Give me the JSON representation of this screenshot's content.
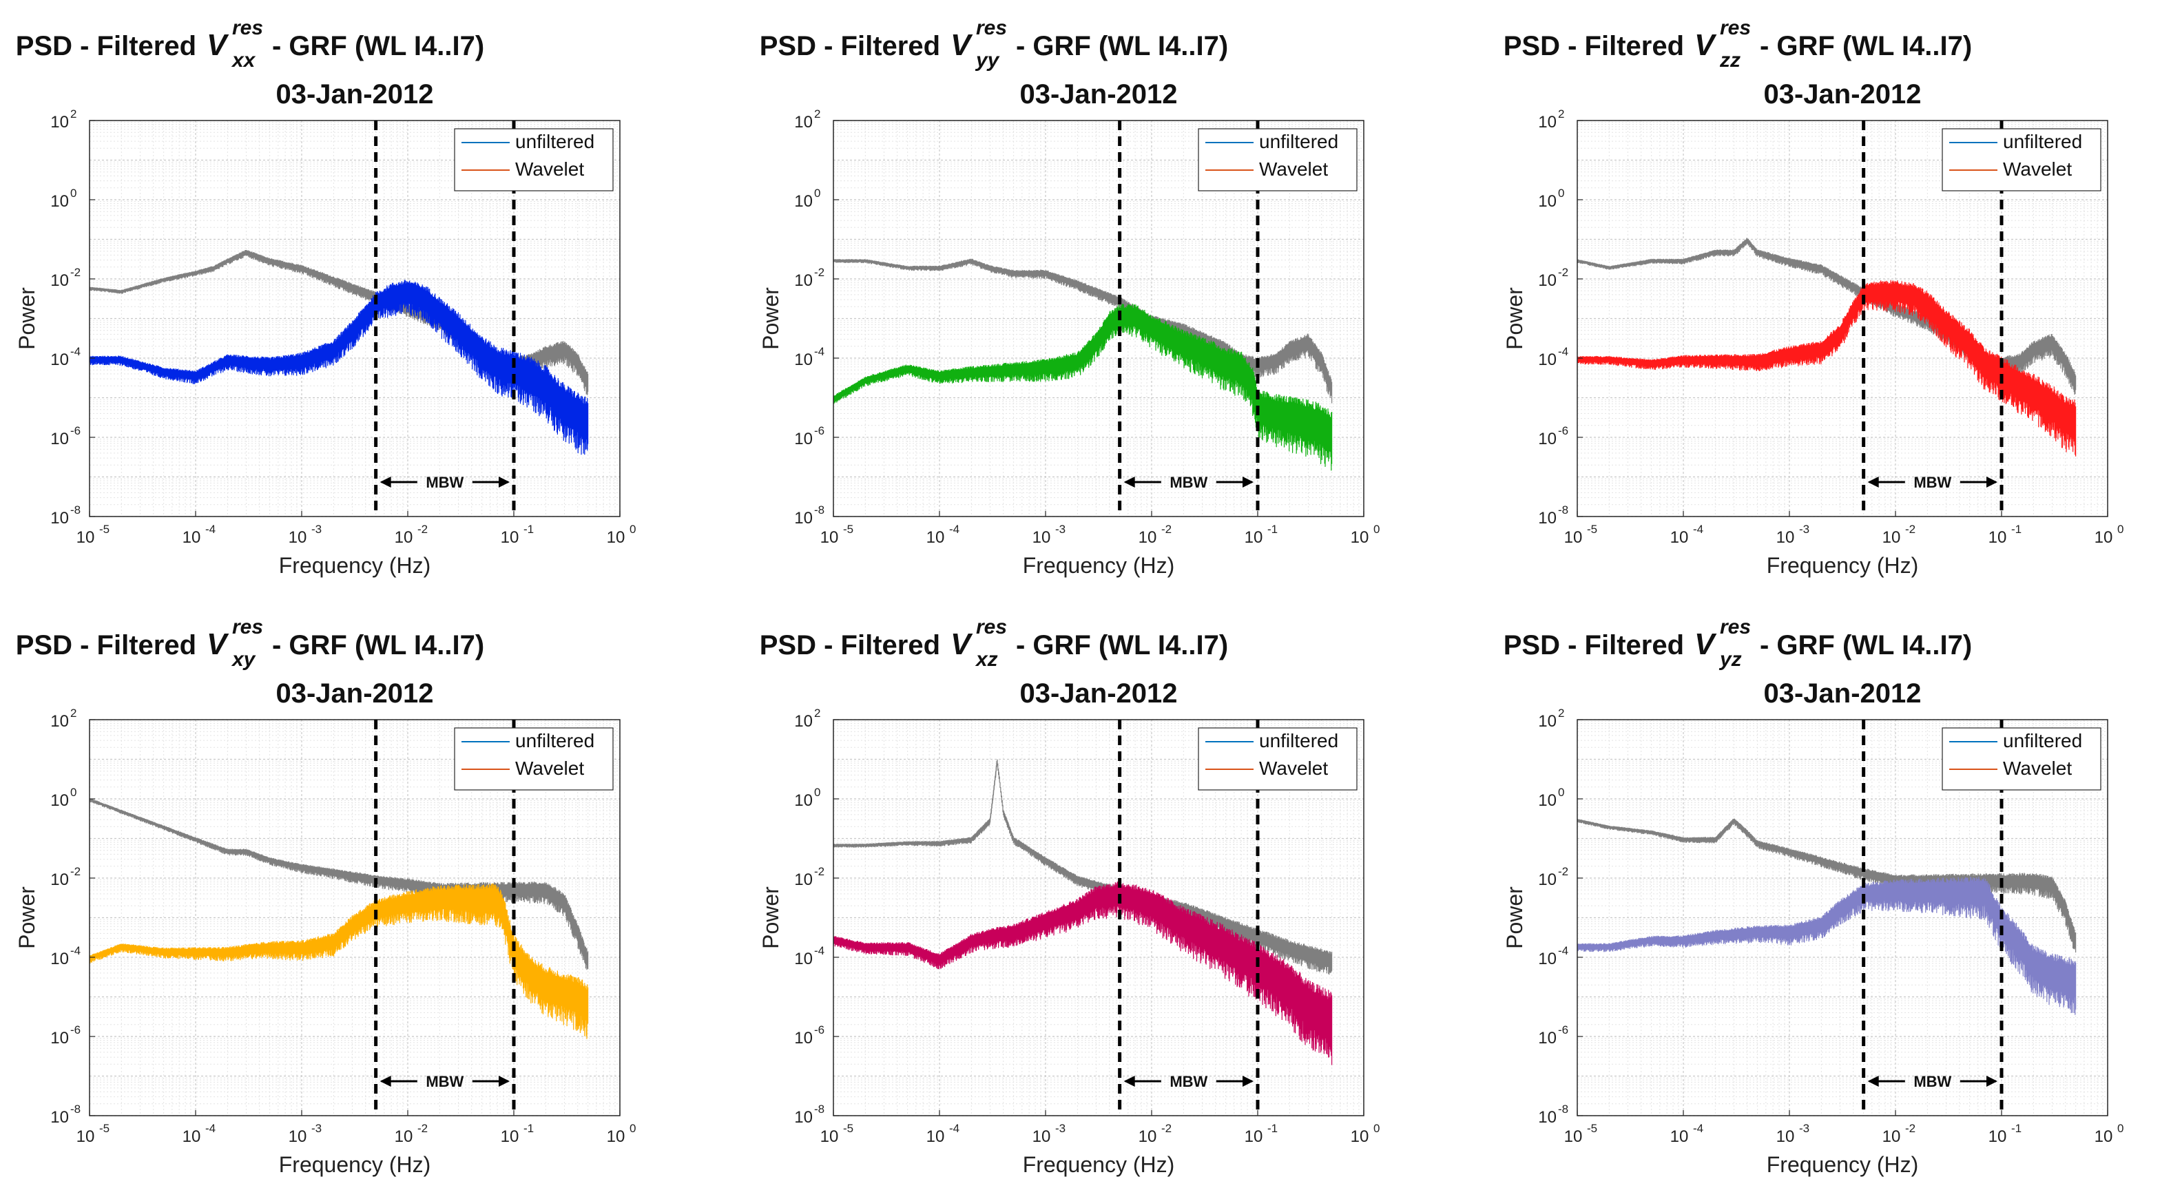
{
  "chart_data": [
    {
      "type": "line",
      "id": "xx",
      "title": {
        "prefix": "PSD - Filtered",
        "symbol": "V",
        "superscript": "res",
        "subscript": "xx",
        "suffix": "- GRF (WL I4..I7)"
      },
      "subtitle": "03-Jan-2012",
      "xlabel": "Frequency (Hz)",
      "ylabel": "Power",
      "xscale": "log",
      "yscale": "log",
      "xlim": [
        1e-05,
        1
      ],
      "ylim": [
        1e-08,
        100
      ],
      "xticks": [
        {
          "v": -5,
          "label": "10"
        },
        {
          "v": -4,
          "label": "10"
        },
        {
          "v": -3,
          "label": "10"
        },
        {
          "v": -2,
          "label": "10"
        },
        {
          "v": -1,
          "label": "10"
        },
        {
          "v": 0,
          "label": "10"
        }
      ],
      "xtick_exponents": [
        "-5",
        "-4",
        "-3",
        "-2",
        "-1",
        "0"
      ],
      "ytick_exponents": [
        "-8",
        "-6",
        "-4",
        "-2",
        "0",
        "2"
      ],
      "yticks_base": "10",
      "grid": true,
      "legend": {
        "position": "top-right",
        "entries": [
          {
            "name": "unfiltered",
            "color": "#0072bd"
          },
          {
            "name": "Wavelet",
            "color": "#d95319"
          }
        ]
      },
      "band": {
        "label": "MBW",
        "f_low": 0.005,
        "f_high": 0.1
      },
      "series": [
        {
          "name": "unfiltered",
          "color": "#7f7f7f",
          "x": [
            1e-05,
            2e-05,
            5e-05,
            0.0001,
            0.00015,
            0.0002,
            0.0003,
            0.0005,
            0.001,
            0.002,
            0.005,
            0.01,
            0.02,
            0.05,
            0.07,
            0.1,
            0.15,
            0.2,
            0.3,
            0.4,
            0.5
          ],
          "y": [
            0.006,
            0.005,
            0.01,
            0.015,
            0.02,
            0.03,
            0.05,
            0.03,
            0.02,
            0.01,
            0.004,
            0.002,
            0.001,
            0.0002,
            0.0001,
            8e-05,
            0.0001,
            0.00015,
            0.0002,
            0.0001,
            3e-05
          ]
        },
        {
          "name": "Wavelet",
          "color": "#0026e6",
          "x": [
            1e-05,
            2e-05,
            5e-05,
            0.0001,
            0.0002,
            0.0005,
            0.001,
            0.002,
            0.003,
            0.005,
            0.007,
            0.01,
            0.015,
            0.02,
            0.03,
            0.05,
            0.07,
            0.1,
            0.15,
            0.2,
            0.3,
            0.4,
            0.5
          ],
          "y": [
            0.0001,
            0.0001,
            5e-05,
            4e-05,
            0.0001,
            8e-05,
            0.0001,
            0.0002,
            0.0006,
            0.003,
            0.005,
            0.006,
            0.004,
            0.002,
            0.0008,
            0.0002,
            0.0001,
            8e-05,
            5e-05,
            3e-05,
            1e-05,
            6e-06,
            4e-06
          ],
          "spread": 1.1
        }
      ]
    },
    {
      "type": "line",
      "id": "yy",
      "title": {
        "prefix": "PSD - Filtered",
        "symbol": "V",
        "superscript": "res",
        "subscript": "yy",
        "suffix": "- GRF (WL I4..I7)"
      },
      "subtitle": "03-Jan-2012",
      "xlabel": "Frequency (Hz)",
      "ylabel": "Power",
      "xscale": "log",
      "yscale": "log",
      "xlim": [
        1e-05,
        1
      ],
      "ylim": [
        1e-08,
        100
      ],
      "xtick_exponents": [
        "-5",
        "-4",
        "-3",
        "-2",
        "-1",
        "0"
      ],
      "ytick_exponents": [
        "-8",
        "-6",
        "-4",
        "-2",
        "0",
        "2"
      ],
      "yticks_base": "10",
      "grid": true,
      "legend": {
        "position": "top-right",
        "entries": [
          {
            "name": "unfiltered",
            "color": "#0072bd"
          },
          {
            "name": "Wavelet",
            "color": "#d95319"
          }
        ]
      },
      "band": {
        "label": "MBW",
        "f_low": 0.005,
        "f_high": 0.1
      },
      "series": [
        {
          "name": "unfiltered",
          "color": "#7f7f7f",
          "x": [
            1e-05,
            2e-05,
            5e-05,
            0.0001,
            0.0002,
            0.0003,
            0.0005,
            0.001,
            0.002,
            0.005,
            0.01,
            0.02,
            0.05,
            0.07,
            0.1,
            0.15,
            0.2,
            0.3,
            0.4,
            0.5
          ],
          "y": [
            0.03,
            0.03,
            0.02,
            0.02,
            0.03,
            0.02,
            0.015,
            0.015,
            0.008,
            0.003,
            0.001,
            0.0006,
            0.0002,
            0.0001,
            8e-05,
            0.0001,
            0.0002,
            0.0003,
            0.0001,
            2e-05
          ]
        },
        {
          "name": "Wavelet",
          "color": "#10b010",
          "x": [
            1e-05,
            2e-05,
            5e-05,
            0.0001,
            0.0002,
            0.0005,
            0.001,
            0.002,
            0.003,
            0.004,
            0.005,
            0.007,
            0.01,
            0.02,
            0.03,
            0.05,
            0.07,
            0.09,
            0.1,
            0.15,
            0.2,
            0.3,
            0.4,
            0.5
          ],
          "y": [
            1e-05,
            3e-05,
            6e-05,
            4e-05,
            5e-05,
            6e-05,
            7e-05,
            0.0001,
            0.0003,
            0.001,
            0.0015,
            0.0015,
            0.0008,
            0.0003,
            0.0002,
            0.0001,
            8e-05,
            3e-05,
            8e-06,
            6e-06,
            5e-06,
            4e-06,
            3e-06,
            2e-06
          ],
          "spread": 1.1
        }
      ]
    },
    {
      "type": "line",
      "id": "zz",
      "title": {
        "prefix": "PSD - Filtered",
        "symbol": "V",
        "superscript": "res",
        "subscript": "zz",
        "suffix": "- GRF (WL I4..I7)"
      },
      "subtitle": "03-Jan-2012",
      "xlabel": "Frequency (Hz)",
      "ylabel": "Power",
      "xscale": "log",
      "yscale": "log",
      "xlim": [
        1e-05,
        1
      ],
      "ylim": [
        1e-08,
        100
      ],
      "xtick_exponents": [
        "-5",
        "-4",
        "-3",
        "-2",
        "-1",
        "0"
      ],
      "ytick_exponents": [
        "-8",
        "-6",
        "-4",
        "-2",
        "0",
        "2"
      ],
      "yticks_base": "10",
      "grid": true,
      "legend": {
        "position": "top-right",
        "entries": [
          {
            "name": "unfiltered",
            "color": "#0072bd"
          },
          {
            "name": "Wavelet",
            "color": "#d95319"
          }
        ]
      },
      "band": {
        "label": "MBW",
        "f_low": 0.005,
        "f_high": 0.1
      },
      "series": [
        {
          "name": "unfiltered",
          "color": "#7f7f7f",
          "x": [
            1e-05,
            2e-05,
            5e-05,
            0.0001,
            0.0002,
            0.0003,
            0.0004,
            0.0005,
            0.001,
            0.002,
            0.005,
            0.01,
            0.02,
            0.05,
            0.07,
            0.1,
            0.15,
            0.2,
            0.3,
            0.4,
            0.5
          ],
          "y": [
            0.03,
            0.02,
            0.03,
            0.03,
            0.05,
            0.05,
            0.1,
            0.05,
            0.03,
            0.02,
            0.005,
            0.002,
            0.001,
            0.0002,
            0.0001,
            8e-05,
            0.0001,
            0.0002,
            0.0003,
            0.0001,
            3e-05
          ]
        },
        {
          "name": "Wavelet",
          "color": "#ff1a1a",
          "x": [
            1e-05,
            2e-05,
            5e-05,
            0.0001,
            0.0002,
            0.0005,
            0.001,
            0.002,
            0.003,
            0.004,
            0.005,
            0.007,
            0.01,
            0.015,
            0.02,
            0.03,
            0.05,
            0.07,
            0.1,
            0.15,
            0.2,
            0.3,
            0.4,
            0.5
          ],
          "y": [
            0.0001,
            0.0001,
            8e-05,
            0.0001,
            0.0001,
            0.0001,
            0.00015,
            0.0002,
            0.0005,
            0.002,
            0.005,
            0.006,
            0.006,
            0.005,
            0.003,
            0.001,
            0.0003,
            0.0001,
            6e-05,
            3e-05,
            2e-05,
            1e-05,
            5e-06,
            4e-06
          ],
          "spread": 1.0
        }
      ]
    },
    {
      "type": "line",
      "id": "xy",
      "title": {
        "prefix": "PSD - Filtered",
        "symbol": "V",
        "superscript": "res",
        "subscript": "xy",
        "suffix": "- GRF (WL I4..I7)"
      },
      "subtitle": "03-Jan-2012",
      "xlabel": "Frequency (Hz)",
      "ylabel": "Power",
      "xscale": "log",
      "yscale": "log",
      "xlim": [
        1e-05,
        1
      ],
      "ylim": [
        1e-08,
        100
      ],
      "xtick_exponents": [
        "-5",
        "-4",
        "-3",
        "-2",
        "-1",
        "0"
      ],
      "ytick_exponents": [
        "-8",
        "-6",
        "-4",
        "-2",
        "0",
        "2"
      ],
      "yticks_base": "10",
      "grid": true,
      "legend": {
        "position": "top-right",
        "entries": [
          {
            "name": "unfiltered",
            "color": "#0072bd"
          },
          {
            "name": "Wavelet",
            "color": "#d95319"
          }
        ]
      },
      "band": {
        "label": "MBW",
        "f_low": 0.005,
        "f_high": 0.1
      },
      "series": [
        {
          "name": "unfiltered",
          "color": "#7f7f7f",
          "x": [
            1e-05,
            2e-05,
            5e-05,
            0.0001,
            0.0002,
            0.0003,
            0.0005,
            0.001,
            0.002,
            0.005,
            0.01,
            0.02,
            0.05,
            0.07,
            0.1,
            0.15,
            0.2,
            0.3,
            0.4,
            0.5
          ],
          "y": [
            1.0,
            0.5,
            0.2,
            0.1,
            0.05,
            0.05,
            0.03,
            0.02,
            0.015,
            0.01,
            0.008,
            0.006,
            0.006,
            0.006,
            0.006,
            0.006,
            0.006,
            0.003,
            0.0005,
            0.0001
          ]
        },
        {
          "name": "Wavelet",
          "color": "#ffb000",
          "x": [
            1e-05,
            2e-05,
            5e-05,
            0.0001,
            0.0002,
            0.0005,
            0.001,
            0.002,
            0.003,
            0.005,
            0.01,
            0.02,
            0.05,
            0.07,
            0.08,
            0.1,
            0.15,
            0.2,
            0.3,
            0.4,
            0.5
          ],
          "y": [
            0.0001,
            0.0002,
            0.00015,
            0.00015,
            0.00015,
            0.0002,
            0.0002,
            0.0003,
            0.0008,
            0.002,
            0.003,
            0.004,
            0.004,
            0.004,
            0.002,
            0.0002,
            5e-05,
            3e-05,
            2e-05,
            1.5e-05,
            1e-05
          ],
          "spread": 1.0
        }
      ]
    },
    {
      "type": "line",
      "id": "xz",
      "title": {
        "prefix": "PSD - Filtered",
        "symbol": "V",
        "superscript": "res",
        "subscript": "xz",
        "suffix": "- GRF (WL I4..I7)"
      },
      "subtitle": "03-Jan-2012",
      "xlabel": "Frequency (Hz)",
      "ylabel": "Power",
      "xscale": "log",
      "yscale": "log",
      "xlim": [
        1e-05,
        1
      ],
      "ylim": [
        1e-08,
        100
      ],
      "xtick_exponents": [
        "-5",
        "-4",
        "-3",
        "-2",
        "-1",
        "0"
      ],
      "ytick_exponents": [
        "-8",
        "-6",
        "-4",
        "-2",
        "0",
        "2"
      ],
      "yticks_base": "10",
      "grid": true,
      "legend": {
        "position": "top-right",
        "entries": [
          {
            "name": "unfiltered",
            "color": "#0072bd"
          },
          {
            "name": "Wavelet",
            "color": "#d95319"
          }
        ]
      },
      "band": {
        "label": "MBW",
        "f_low": 0.005,
        "f_high": 0.1
      },
      "series": [
        {
          "name": "unfiltered",
          "color": "#7f7f7f",
          "x": [
            1e-05,
            2e-05,
            5e-05,
            0.0001,
            0.0002,
            0.0003,
            0.00035,
            0.0004,
            0.0005,
            0.001,
            0.002,
            0.005,
            0.01,
            0.02,
            0.05,
            0.1,
            0.2,
            0.5
          ],
          "y": [
            0.07,
            0.07,
            0.08,
            0.08,
            0.1,
            0.3,
            10.0,
            0.5,
            0.1,
            0.03,
            0.01,
            0.005,
            0.003,
            0.002,
            0.0008,
            0.0004,
            0.0002,
            0.0001
          ]
        },
        {
          "name": "Wavelet",
          "color": "#c8005a",
          "x": [
            1e-05,
            2e-05,
            5e-05,
            0.0001,
            0.0002,
            0.0003,
            0.0005,
            0.001,
            0.002,
            0.003,
            0.005,
            0.007,
            0.01,
            0.02,
            0.05,
            0.1,
            0.2,
            0.3,
            0.5
          ],
          "y": [
            0.0003,
            0.0002,
            0.0002,
            0.0001,
            0.0003,
            0.0004,
            0.0005,
            0.001,
            0.002,
            0.004,
            0.005,
            0.004,
            0.003,
            0.001,
            0.0003,
            0.0001,
            3e-05,
            1e-05,
            5e-06
          ],
          "spread": 1.3
        }
      ]
    },
    {
      "type": "line",
      "id": "yz",
      "title": {
        "prefix": "PSD - Filtered",
        "symbol": "V",
        "superscript": "res",
        "subscript": "yz",
        "suffix": "- GRF (WL I4..I7)"
      },
      "subtitle": "03-Jan-2012",
      "xlabel": "Frequency (Hz)",
      "ylabel": "Power",
      "xscale": "log",
      "yscale": "log",
      "xlim": [
        1e-05,
        1
      ],
      "ylim": [
        1e-08,
        100
      ],
      "xtick_exponents": [
        "-5",
        "-4",
        "-3",
        "-2",
        "-1",
        "0"
      ],
      "ytick_exponents": [
        "-8",
        "-6",
        "-4",
        "-2",
        "0",
        "2"
      ],
      "yticks_base": "10",
      "grid": true,
      "legend": {
        "position": "top-right",
        "entries": [
          {
            "name": "unfiltered",
            "color": "#0072bd"
          },
          {
            "name": "Wavelet",
            "color": "#d95319"
          }
        ]
      },
      "band": {
        "label": "MBW",
        "f_low": 0.005,
        "f_high": 0.1
      },
      "series": [
        {
          "name": "unfiltered",
          "color": "#7f7f7f",
          "x": [
            1e-05,
            2e-05,
            5e-05,
            0.0001,
            0.0002,
            0.0003,
            0.0004,
            0.0005,
            0.001,
            0.002,
            0.005,
            0.01,
            0.02,
            0.05,
            0.1,
            0.15,
            0.2,
            0.3,
            0.4,
            0.5
          ],
          "y": [
            0.3,
            0.2,
            0.15,
            0.1,
            0.1,
            0.3,
            0.15,
            0.08,
            0.05,
            0.03,
            0.015,
            0.01,
            0.01,
            0.01,
            0.01,
            0.01,
            0.01,
            0.008,
            0.002,
            0.0003
          ]
        },
        {
          "name": "Wavelet",
          "color": "#8080c8",
          "x": [
            1e-05,
            2e-05,
            5e-05,
            0.0001,
            0.0002,
            0.0005,
            0.001,
            0.002,
            0.003,
            0.005,
            0.01,
            0.02,
            0.05,
            0.07,
            0.1,
            0.15,
            0.2,
            0.3,
            0.4,
            0.5
          ],
          "y": [
            0.0002,
            0.0002,
            0.0003,
            0.0003,
            0.0004,
            0.0005,
            0.0005,
            0.0008,
            0.002,
            0.005,
            0.006,
            0.006,
            0.006,
            0.006,
            0.001,
            0.0003,
            0.0001,
            6e-05,
            5e-05,
            4e-05
          ],
          "spread": 1.0
        }
      ]
    }
  ]
}
